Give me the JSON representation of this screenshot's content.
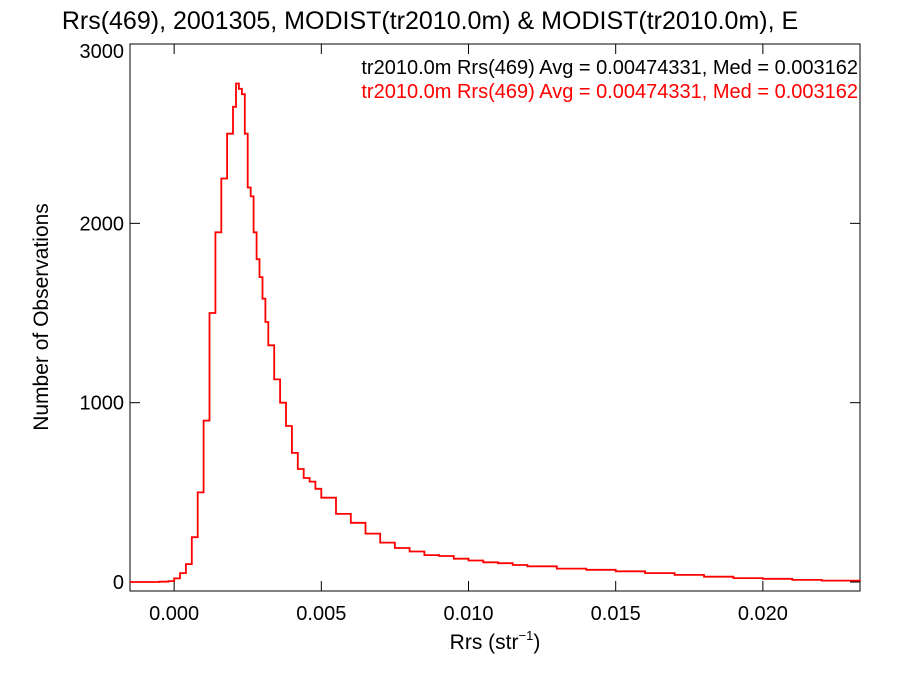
{
  "chart_data": {
    "type": "line",
    "title": "Rrs(469), 2001305, MODIST(tr2010.0m) & MODIST(tr2010.0m), E",
    "xlabel": "Rrs (str",
    "xlabel_sup": "−1",
    "xlabel_end": ")",
    "ylabel": "Number of Observations",
    "xlim": [
      -0.0015,
      0.0233
    ],
    "ylim": [
      -50,
      3000
    ],
    "x_ticks": [
      {
        "value": 0.0,
        "label": "0.000"
      },
      {
        "value": 0.005,
        "label": "0.005"
      },
      {
        "value": 0.01,
        "label": "0.010"
      },
      {
        "value": 0.015,
        "label": "0.015"
      },
      {
        "value": 0.02,
        "label": "0.020"
      }
    ],
    "y_ticks": [
      {
        "value": 0,
        "label": "0"
      },
      {
        "value": 1000,
        "label": "1000"
      },
      {
        "value": 2000,
        "label": "2000"
      },
      {
        "value": 3000,
        "label": "3000"
      }
    ],
    "legend_position": "top-right",
    "legend": [
      {
        "text": "tr2010.0m Rrs(469) Avg = 0.00474331, Med = 0.003162",
        "color": "#000000"
      },
      {
        "text": "tr2010.0m Rrs(469) Avg = 0.00474331, Med = 0.003162",
        "color": "#ff0000"
      }
    ],
    "series": [
      {
        "color": "#ff0000",
        "style": "step",
        "x": [
          -0.0015,
          -0.001,
          -0.0005,
          -0.0002,
          0.0,
          0.0002,
          0.0004,
          0.0006,
          0.0008,
          0.001,
          0.0012,
          0.0014,
          0.0016,
          0.0018,
          0.002,
          0.0021,
          0.0022,
          0.0023,
          0.0024,
          0.0025,
          0.0026,
          0.0027,
          0.0028,
          0.0029,
          0.003,
          0.0031,
          0.0032,
          0.0034,
          0.0036,
          0.0038,
          0.004,
          0.0042,
          0.0044,
          0.0046,
          0.0048,
          0.005,
          0.0055,
          0.006,
          0.0065,
          0.007,
          0.0075,
          0.008,
          0.0085,
          0.009,
          0.0095,
          0.01,
          0.0105,
          0.011,
          0.0115,
          0.012,
          0.013,
          0.014,
          0.015,
          0.016,
          0.017,
          0.018,
          0.019,
          0.02,
          0.021,
          0.022,
          0.0233
        ],
        "y": [
          0,
          0,
          2,
          5,
          20,
          50,
          100,
          250,
          500,
          900,
          1500,
          1950,
          2250,
          2500,
          2650,
          2780,
          2750,
          2720,
          2500,
          2200,
          2150,
          1950,
          1800,
          1700,
          1580,
          1450,
          1320,
          1130,
          1000,
          870,
          720,
          630,
          580,
          560,
          520,
          470,
          380,
          330,
          270,
          220,
          190,
          170,
          150,
          145,
          130,
          120,
          110,
          105,
          95,
          88,
          75,
          68,
          60,
          50,
          40,
          30,
          22,
          18,
          12,
          8,
          5
        ]
      }
    ]
  }
}
